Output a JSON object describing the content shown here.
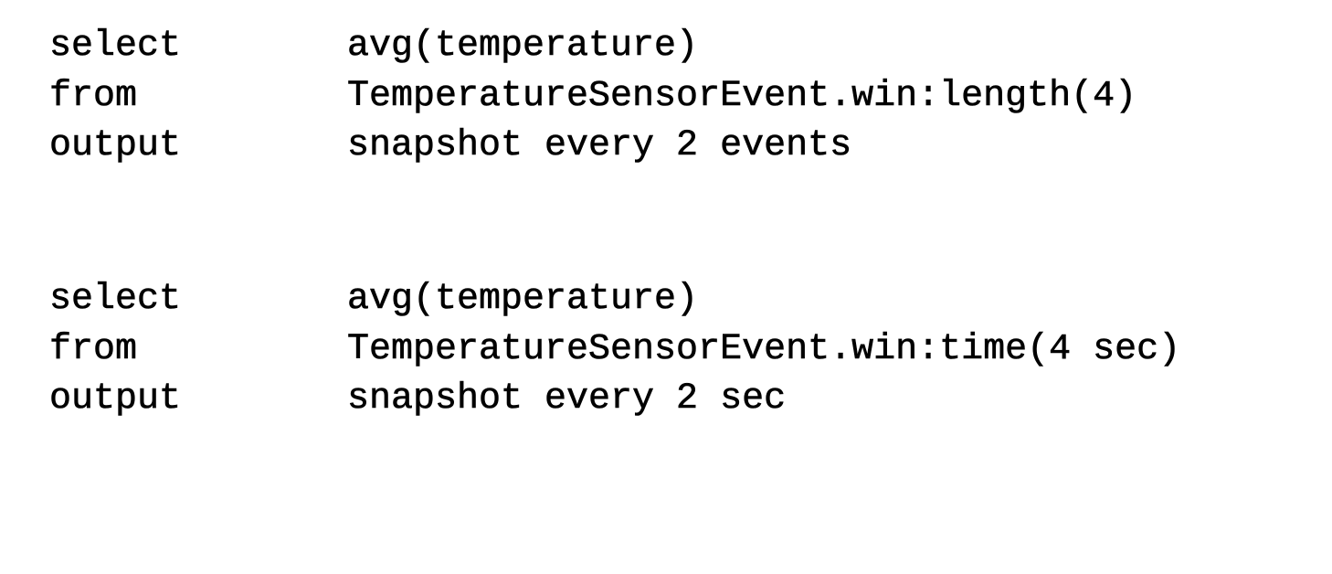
{
  "queries": [
    {
      "lines": [
        {
          "keyword": "select",
          "expression": "avg(temperature)"
        },
        {
          "keyword": "from",
          "expression": "TemperatureSensorEvent.win:length(4)"
        },
        {
          "keyword": "output",
          "expression": "snapshot every 2 events"
        }
      ]
    },
    {
      "lines": [
        {
          "keyword": "select",
          "expression": "avg(temperature)"
        },
        {
          "keyword": "from",
          "expression": "TemperatureSensorEvent.win:time(4 sec)"
        },
        {
          "keyword": "output",
          "expression": "snapshot every 2 sec"
        }
      ]
    }
  ]
}
